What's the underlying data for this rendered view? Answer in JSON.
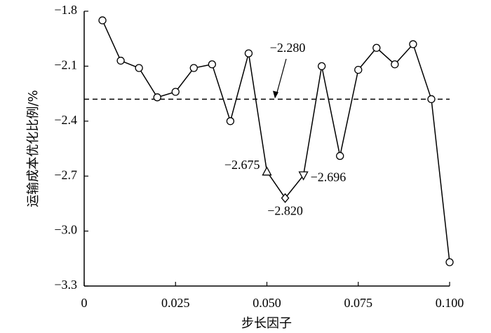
{
  "chart_data": {
    "type": "line",
    "x_label": "步长因子",
    "y_label": "运输成本优化比例/%",
    "x": [
      0.005,
      0.01,
      0.015,
      0.02,
      0.025,
      0.03,
      0.035,
      0.04,
      0.045,
      0.05,
      0.055,
      0.06,
      0.065,
      0.07,
      0.075,
      0.08,
      0.085,
      0.09,
      0.095,
      0.1
    ],
    "values": [
      -1.85,
      -2.07,
      -2.11,
      -2.27,
      -2.24,
      -2.11,
      -2.09,
      -2.4,
      -2.03,
      -2.675,
      -2.82,
      -2.696,
      -2.1,
      -2.59,
      -2.12,
      -2.0,
      -2.09,
      -1.98,
      -2.28,
      -3.17
    ],
    "value_labels": [
      null,
      null,
      null,
      null,
      null,
      null,
      null,
      null,
      null,
      "−2.675",
      "−2.820",
      "−2.696",
      null,
      null,
      null,
      null,
      null,
      null,
      null,
      null
    ],
    "markers": [
      "circle",
      "circle",
      "circle",
      "circle",
      "circle",
      "circle",
      "circle",
      "circle",
      "circle",
      "triangle-up",
      "diamond",
      "triangle-down",
      "circle",
      "circle",
      "circle",
      "circle",
      "circle",
      "circle",
      "circle",
      "circle"
    ],
    "color": "#000000",
    "reference_line": {
      "value": -2.28,
      "label": "−2.280",
      "style": "dashed"
    },
    "xlim": [
      0,
      0.1
    ],
    "ylim": [
      -3.3,
      -1.8
    ],
    "xticks": [
      0,
      0.025,
      {
        "value": 0.05,
        "label": "0.050"
      },
      0.075,
      {
        "value": 0.1,
        "label": "0.100"
      }
    ],
    "yticks": [
      {
        "value": -1.8,
        "label": "−1.8"
      },
      {
        "value": -2.1,
        "label": "−2.1"
      },
      {
        "value": -2.4,
        "label": "−2.4"
      },
      {
        "value": -2.7,
        "label": "−2.7"
      },
      {
        "value": -3.0,
        "label": "−3.0"
      },
      {
        "value": -3.3,
        "label": "−3.3"
      }
    ],
    "grid": false
  }
}
